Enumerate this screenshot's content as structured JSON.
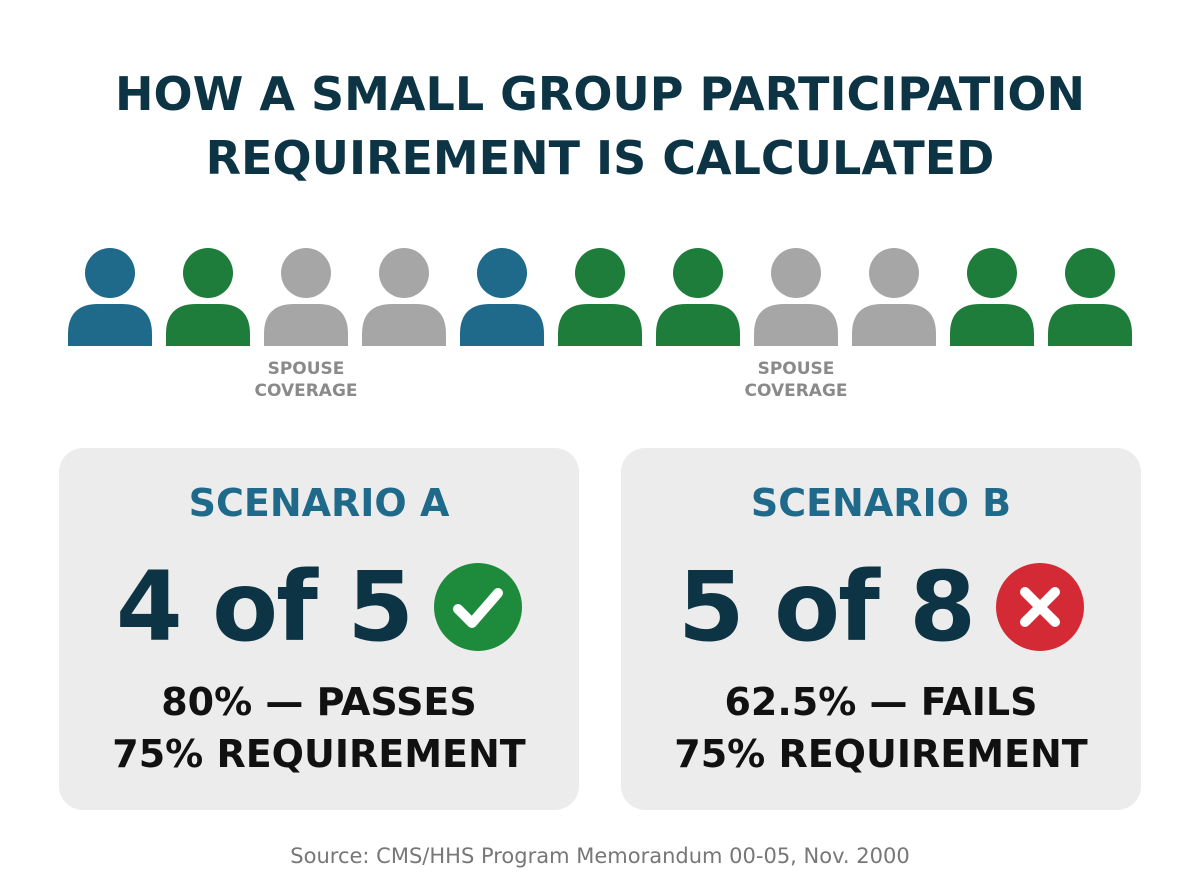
{
  "title": {
    "line1": "HOW A SMALL GROUP PARTICIPATION",
    "line2": "REQUIREMENT IS CALCULATED"
  },
  "people": {
    "figures": [
      {
        "color": "#1f6a8a",
        "icon": "person-icon"
      },
      {
        "color": "#1e7d3a",
        "icon": "person-icon"
      },
      {
        "color": "#a6a6a6",
        "icon": "person-icon"
      },
      {
        "color": "#a6a6a6",
        "icon": "person-icon"
      },
      {
        "color": "#1f6a8a",
        "icon": "person-icon"
      },
      {
        "color": "#1e7d3a",
        "icon": "person-icon"
      },
      {
        "color": "#1e7d3a",
        "icon": "person-icon"
      },
      {
        "color": "#a6a6a6",
        "icon": "person-icon"
      },
      {
        "color": "#a6a6a6",
        "icon": "person-icon"
      },
      {
        "color": "#1e7d3a",
        "icon": "person-icon"
      },
      {
        "color": "#1e7d3a",
        "icon": "person-icon"
      }
    ],
    "spouse_labels": [
      {
        "line1": "SPOUSE",
        "line2": "COVERAGE"
      },
      {
        "line1": "SPOUSE",
        "line2": "COVERAGE"
      }
    ]
  },
  "scenario_a": {
    "title": "SCENARIO A",
    "ratio": "4 of 5",
    "status": "pass",
    "icon": "check-icon",
    "icon_color": "#1e8a3c",
    "result_line1": "80% — PASSES",
    "result_line2": "75% REQUIREMENT"
  },
  "scenario_b": {
    "title": "SCENARIO B",
    "ratio": "5 of 8",
    "status": "fail",
    "icon": "x-icon",
    "icon_color": "#d42a35",
    "result_line1": "62.5% — FAILS",
    "result_line2": "75% REQUIREMENT"
  },
  "source": "Source: CMS/HHS Program Memorandum 00-05, Nov. 2000",
  "colors": {
    "title": "#0d3445",
    "scenario_title": "#1f6a8a",
    "card_bg": "#ececec",
    "person_blue": "#1f6a8a",
    "person_green": "#1e7d3a",
    "person_gray": "#a6a6a6"
  }
}
